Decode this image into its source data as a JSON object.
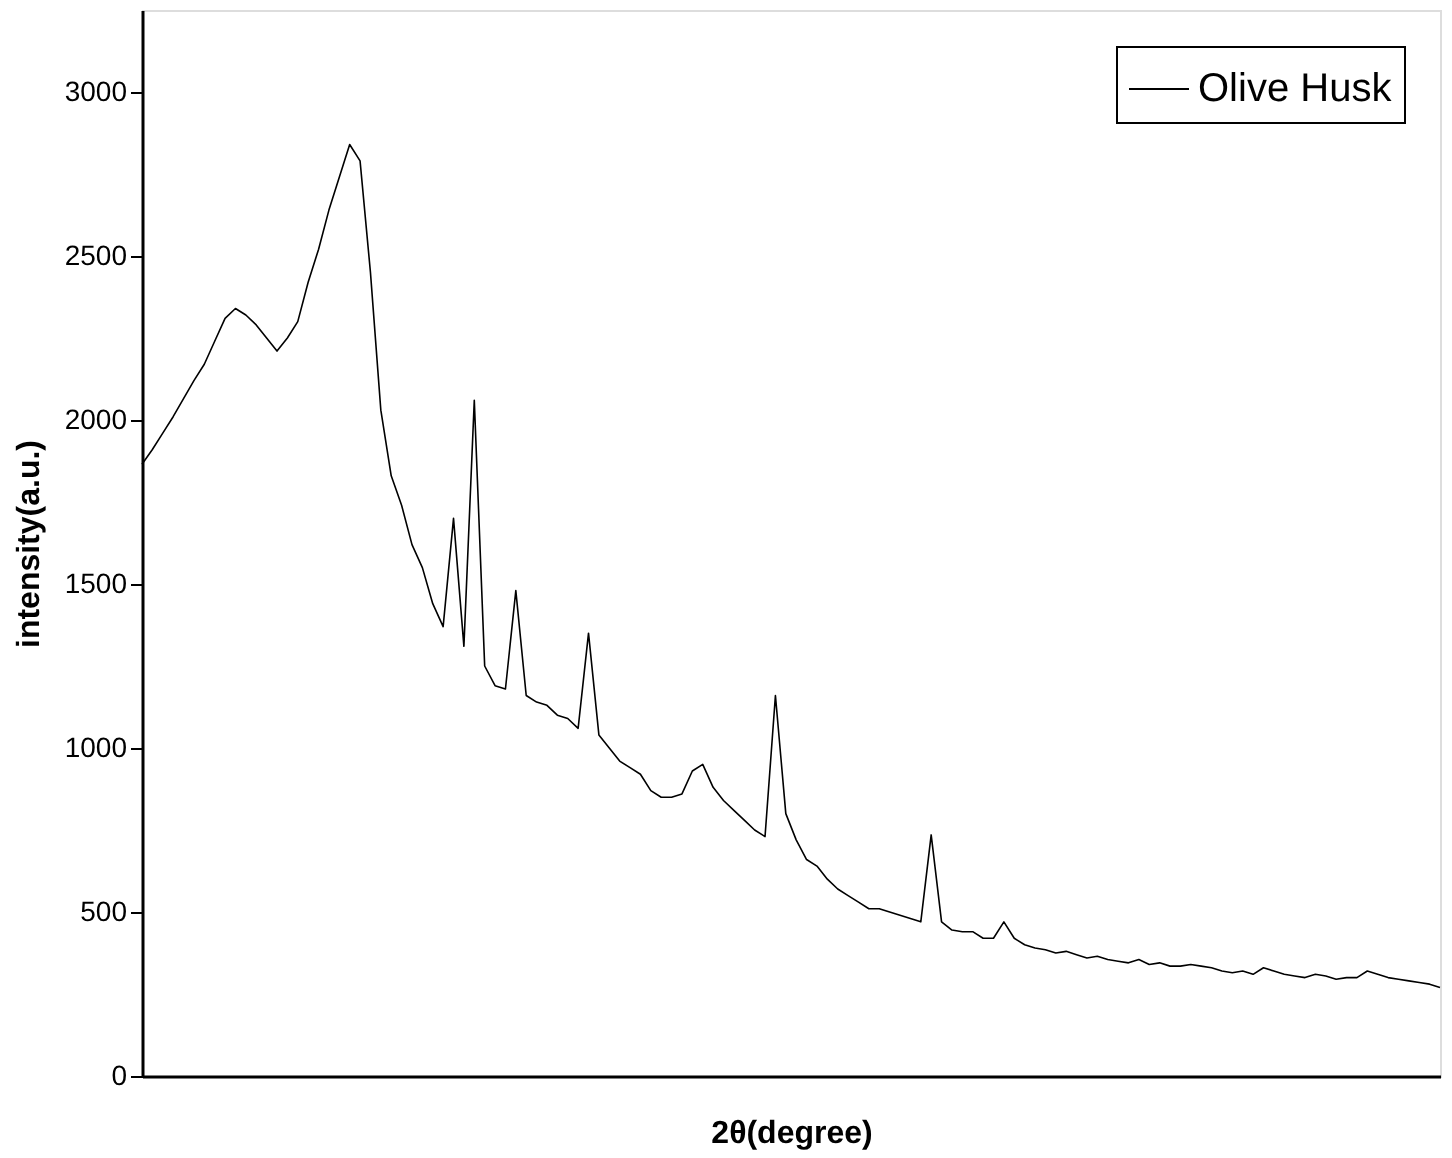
{
  "chart_data": {
    "type": "line",
    "xlabel": "2θ(degree)",
    "ylabel": "intensity(a.u.)",
    "categories": [
      null,
      null,
      null,
      null,
      null,
      null,
      null,
      null,
      null,
      null,
      null,
      null,
      null,
      null,
      null,
      null,
      null,
      null,
      null,
      null,
      null,
      null,
      null,
      null,
      null,
      null,
      null,
      null,
      null,
      null,
      null,
      null,
      null,
      null,
      null,
      null,
      null,
      null,
      null,
      null,
      null,
      null,
      null,
      null,
      null,
      null,
      null,
      null,
      null,
      null,
      null,
      null,
      null,
      null,
      null,
      null,
      null,
      null,
      null,
      null,
      null,
      null,
      null,
      null,
      null,
      null,
      null,
      null,
      null,
      null,
      null,
      null,
      null,
      null,
      null,
      null,
      null,
      null,
      null,
      null,
      null,
      null,
      null,
      null,
      null,
      null,
      null,
      null,
      null,
      null,
      null,
      null,
      null,
      null,
      null,
      null,
      null,
      null,
      null,
      null,
      null,
      null,
      null,
      null,
      null,
      null,
      null,
      null,
      null,
      null,
      null,
      null,
      null,
      null,
      null,
      null,
      null,
      null,
      null,
      null,
      null,
      null,
      null,
      null,
      null,
      null
    ],
    "series": [
      {
        "name": "Olive Husk",
        "color": "#000000",
        "values": [
          1865,
          1910,
          1960,
          2010,
          2065,
          2120,
          2170,
          2240,
          2310,
          2340,
          2320,
          2290,
          2250,
          2210,
          2250,
          2300,
          2420,
          2520,
          2640,
          2740,
          2840,
          2790,
          2450,
          2030,
          1830,
          1740,
          1620,
          1550,
          1440,
          1370,
          1700,
          1310,
          2060,
          1250,
          1190,
          1180,
          1480,
          1160,
          1140,
          1130,
          1100,
          1090,
          1060,
          1350,
          1040,
          1000,
          960,
          940,
          920,
          870,
          850,
          850,
          860,
          930,
          950,
          880,
          840,
          810,
          780,
          750,
          730,
          1160,
          800,
          720,
          660,
          640,
          600,
          570,
          550,
          530,
          510,
          510,
          500,
          490,
          480,
          470,
          735,
          470,
          445,
          440,
          440,
          420,
          420,
          470,
          420,
          400,
          390,
          385,
          375,
          380,
          370,
          360,
          365,
          355,
          350,
          345,
          355,
          340,
          345,
          335,
          335,
          340,
          335,
          330,
          320,
          315,
          320,
          310,
          330,
          320,
          310,
          305,
          300,
          310,
          305,
          295,
          300,
          300,
          320,
          310,
          300,
          295,
          290,
          285,
          280,
          270
        ]
      }
    ],
    "ylim": [
      0,
      3250
    ],
    "yticks": [
      0,
      500,
      1000,
      1500,
      2000,
      2500,
      3000
    ],
    "tick_labels": "y",
    "grid": false,
    "legend": "top right",
    "marker": "none",
    "line_style": "solid"
  }
}
